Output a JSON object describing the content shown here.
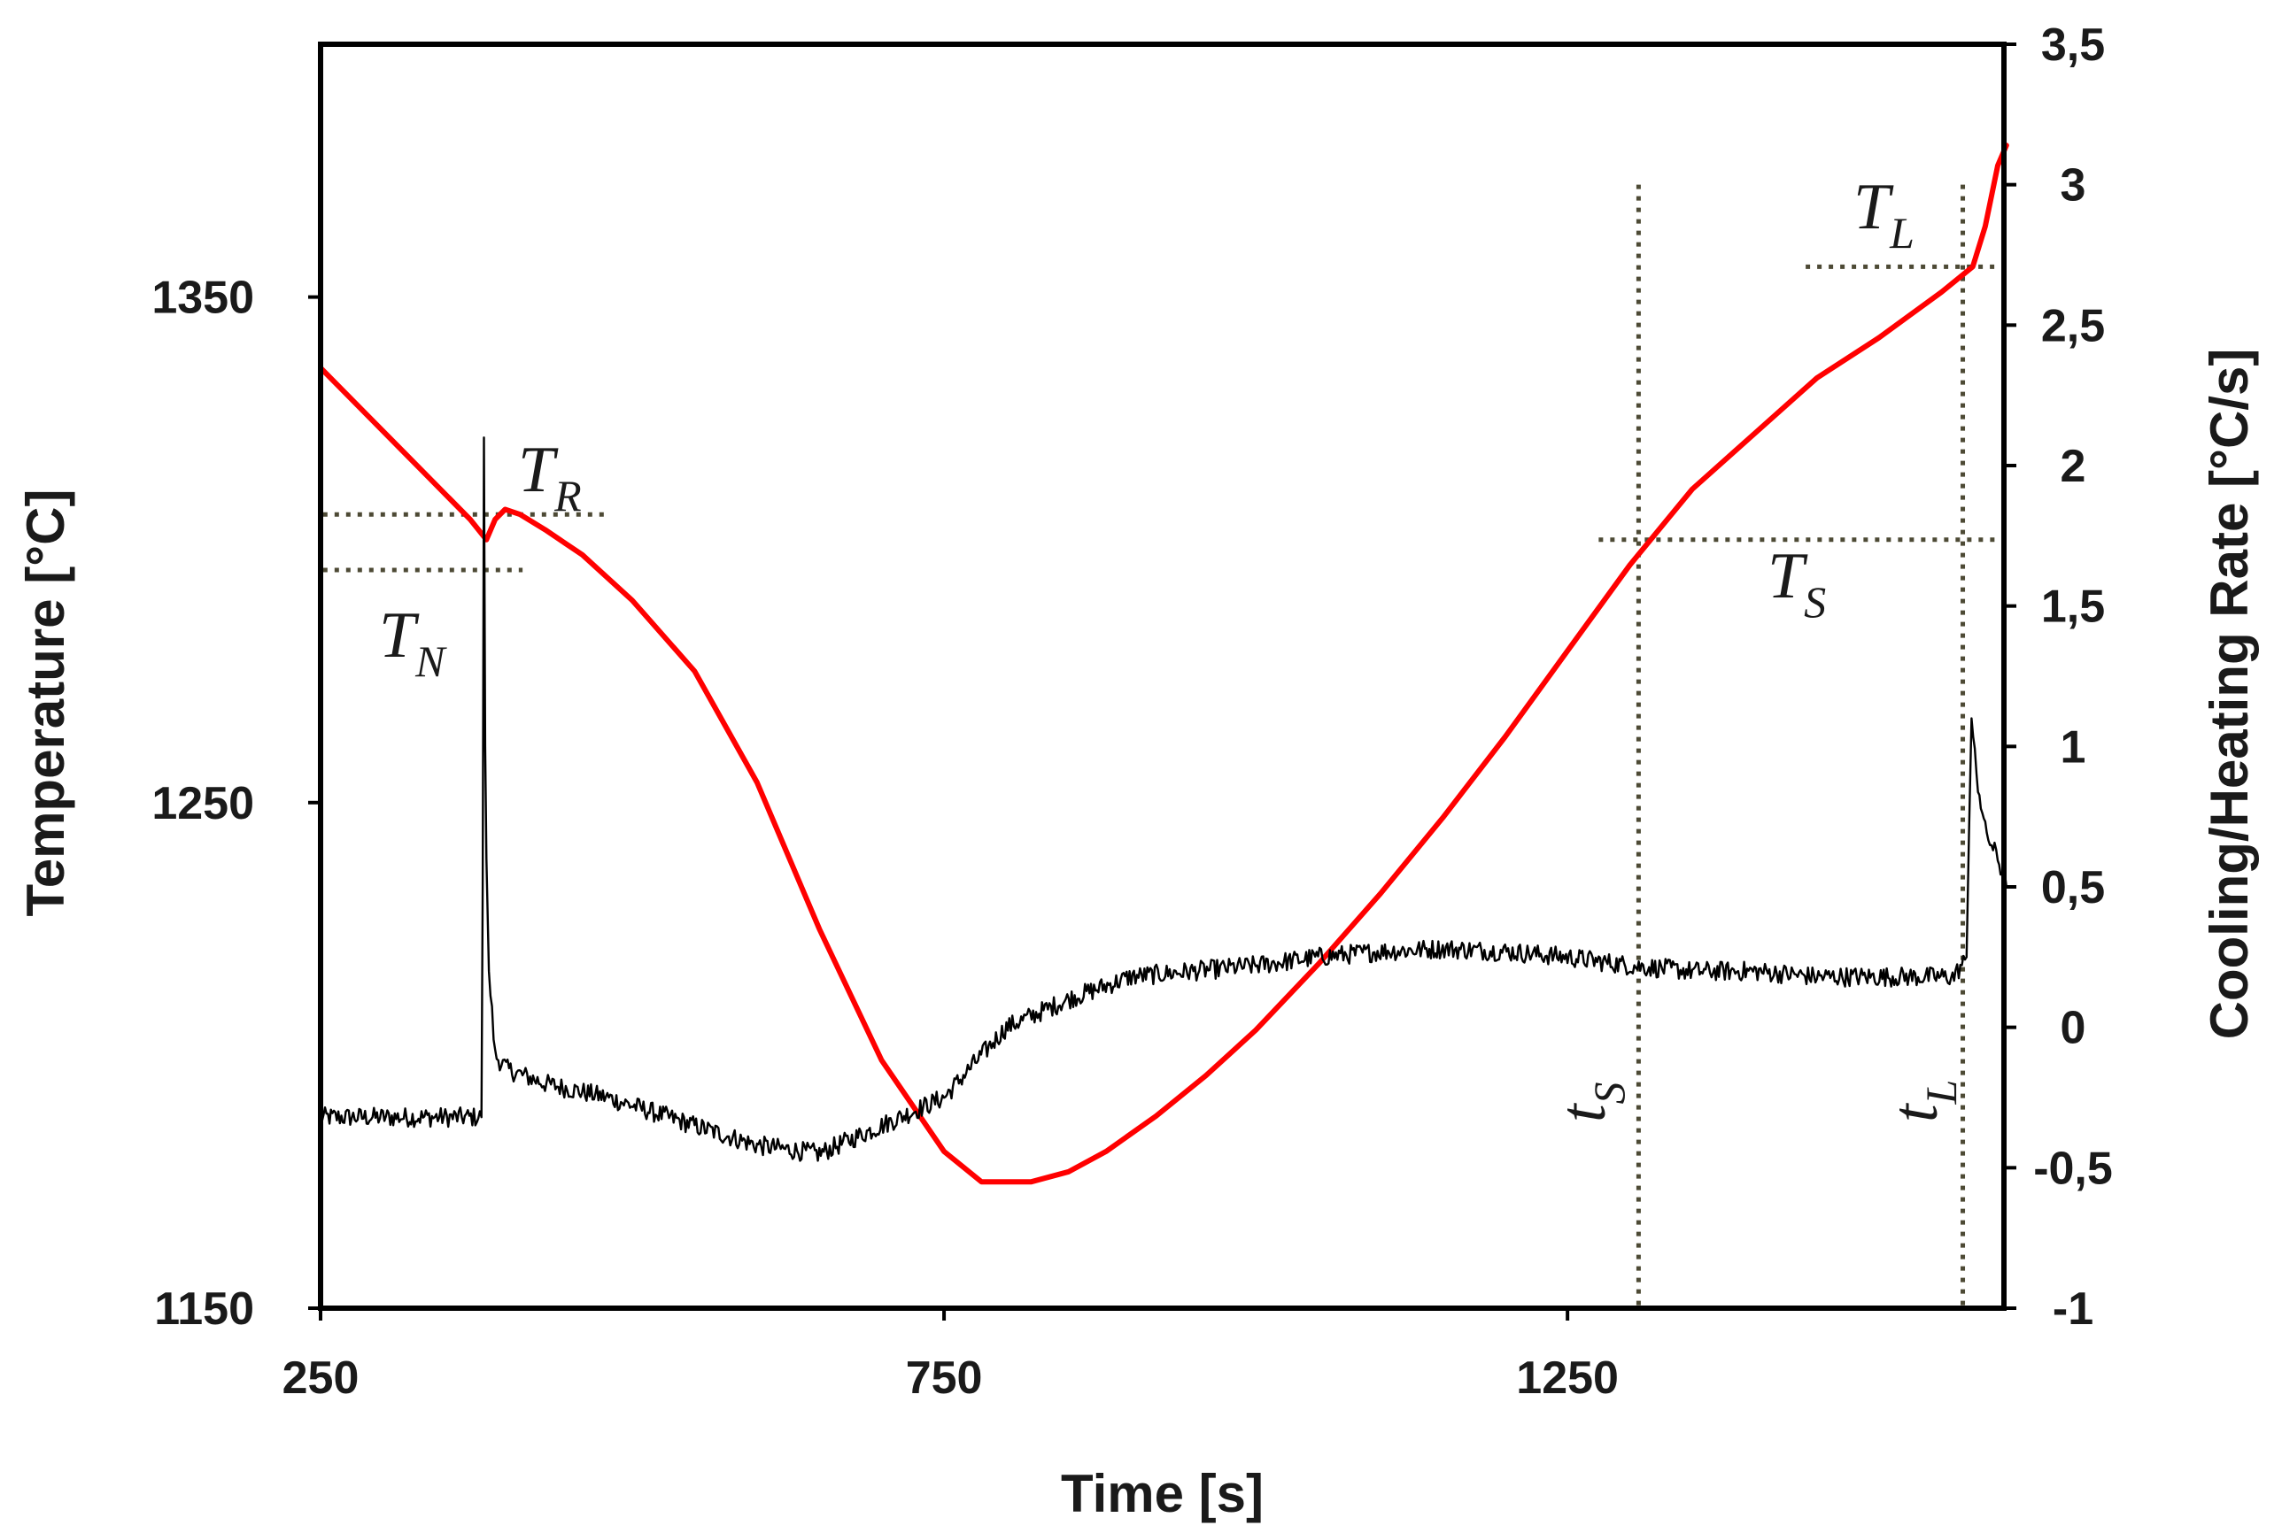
{
  "chart_data": {
    "type": "line",
    "xlabel": "Time [s]",
    "ylabel_left": "Temperature [°C]",
    "ylabel_right": "Cooling/Heating Rate [°C/s]",
    "xlim": [
      250,
      1600
    ],
    "ylim_left": [
      1150,
      1400
    ],
    "ylim_right": [
      -1,
      3.5
    ],
    "x_ticks": [
      250,
      750,
      1250
    ],
    "x_tick_labels": [
      "250",
      "750",
      "1250"
    ],
    "y_left_ticks": [
      1150,
      1250,
      1350
    ],
    "y_left_tick_labels": [
      "1150",
      "1250",
      "1350"
    ],
    "y_right_ticks": [
      -1,
      -0.5,
      0,
      0.5,
      1,
      1.5,
      2,
      2.5,
      3,
      3.5
    ],
    "y_right_tick_labels": [
      "-1",
      "-0,5",
      "0",
      "0,5",
      "1",
      "1,5",
      "2",
      "2,5",
      "3",
      "3,5"
    ],
    "grid": false,
    "series": [
      {
        "name": "Temperature",
        "axis": "left",
        "color": "#ff0000",
        "x": [
          250,
          290,
          330,
          370,
          383,
          390,
          398,
          410,
          430,
          460,
          500,
          550,
          600,
          650,
          700,
          750,
          780,
          800,
          820,
          850,
          880,
          920,
          960,
          1000,
          1050,
          1100,
          1150,
          1200,
          1250,
          1300,
          1320,
          1350,
          1400,
          1450,
          1500,
          1550,
          1575,
          1585,
          1595,
          1602
        ],
        "y": [
          1336,
          1326,
          1316,
          1306,
          1302,
          1306,
          1308,
          1307,
          1304,
          1299,
          1290,
          1276,
          1254,
          1225,
          1199,
          1181,
          1175,
          1175,
          1175,
          1177,
          1181,
          1188,
          1196,
          1205,
          1218,
          1232,
          1247,
          1263,
          1280,
          1297,
          1303,
          1312,
          1323,
          1334,
          1342,
          1351,
          1356,
          1364,
          1376,
          1380
        ]
      },
      {
        "name": "Cooling/Heating Rate",
        "axis": "right",
        "color": "#000000",
        "x": [
          250,
          300,
          350,
          379,
          380,
          381,
          382,
          383,
          385,
          390,
          400,
          430,
          480,
          550,
          600,
          650,
          700,
          750,
          800,
          850,
          900,
          950,
          1000,
          1050,
          1100,
          1150,
          1200,
          1250,
          1300,
          1350,
          1400,
          1450,
          1500,
          1560,
          1570,
          1572,
          1574,
          1578,
          1585,
          1595,
          1602
        ],
        "y": [
          -0.32,
          -0.32,
          -0.32,
          -0.32,
          0.5,
          2.1,
          1.0,
          0.6,
          0.2,
          -0.1,
          -0.15,
          -0.2,
          -0.25,
          -0.35,
          -0.42,
          -0.45,
          -0.35,
          -0.25,
          0.0,
          0.1,
          0.18,
          0.2,
          0.22,
          0.25,
          0.27,
          0.28,
          0.27,
          0.25,
          0.22,
          0.2,
          0.2,
          0.18,
          0.18,
          0.18,
          0.25,
          0.7,
          1.1,
          0.9,
          0.7,
          0.6,
          0.5
        ]
      }
    ],
    "annotations": [
      {
        "id": "TR",
        "base": "T",
        "sub": "R"
      },
      {
        "id": "TN",
        "base": "T",
        "sub": "N"
      },
      {
        "id": "TS",
        "base": "T",
        "sub": "S"
      },
      {
        "id": "TL",
        "base": "T",
        "sub": "L"
      },
      {
        "id": "tS",
        "base": "t",
        "sub": "S"
      },
      {
        "id": "tL",
        "base": "t",
        "sub": "L"
      }
    ],
    "reference_lines": {
      "T_R": 1307,
      "T_N": 1296,
      "T_S": 1302,
      "T_L": 1356,
      "t_S": 1307,
      "t_L": 1567
    },
    "reference_line_color": "#4d4a35"
  }
}
